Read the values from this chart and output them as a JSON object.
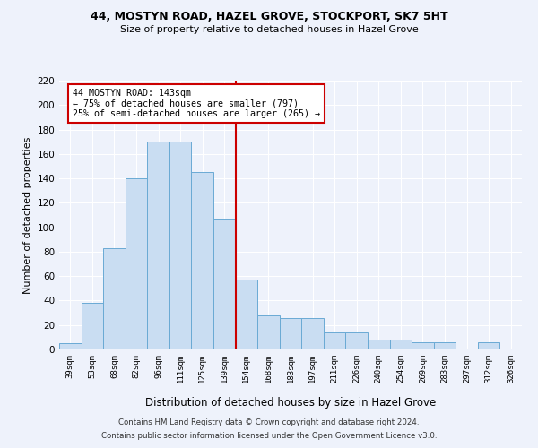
{
  "title1": "44, MOSTYN ROAD, HAZEL GROVE, STOCKPORT, SK7 5HT",
  "title2": "Size of property relative to detached houses in Hazel Grove",
  "xlabel": "Distribution of detached houses by size in Hazel Grove",
  "ylabel": "Number of detached properties",
  "footer1": "Contains HM Land Registry data © Crown copyright and database right 2024.",
  "footer2": "Contains public sector information licensed under the Open Government Licence v3.0.",
  "annotation_title": "44 MOSTYN ROAD: 143sqm",
  "annotation_line1": "← 75% of detached houses are smaller (797)",
  "annotation_line2": "25% of semi-detached houses are larger (265) →",
  "bar_color": "#c9ddf2",
  "bar_edge_color": "#6aaad4",
  "vline_color": "#cc0000",
  "background_color": "#eef2fb",
  "categories": [
    "39sqm",
    "53sqm",
    "68sqm",
    "82sqm",
    "96sqm",
    "111sqm",
    "125sqm",
    "139sqm",
    "154sqm",
    "168sqm",
    "183sqm",
    "197sqm",
    "211sqm",
    "226sqm",
    "240sqm",
    "254sqm",
    "269sqm",
    "283sqm",
    "297sqm",
    "312sqm",
    "326sqm"
  ],
  "values": [
    5,
    38,
    83,
    140,
    170,
    170,
    145,
    107,
    57,
    28,
    26,
    26,
    14,
    14,
    8,
    8,
    6,
    6,
    1,
    6,
    1
  ],
  "ylim": [
    0,
    220
  ],
  "yticks": [
    0,
    20,
    40,
    60,
    80,
    100,
    120,
    140,
    160,
    180,
    200,
    220
  ],
  "grid_color": "#ffffff",
  "annotation_box_color": "#ffffff",
  "annotation_box_edge": "#cc0000",
  "vline_idx": 7
}
